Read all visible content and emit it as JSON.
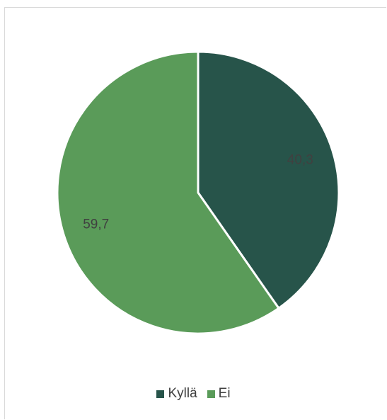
{
  "chart_data": {
    "type": "pie",
    "title": "",
    "slices": [
      {
        "name": "Kyllä",
        "value": 40.3,
        "label": "40,3",
        "color": "#27544a",
        "label_color": "#404040"
      },
      {
        "name": "Ei",
        "value": 59.7,
        "label": "59,7",
        "color": "#5a9b59",
        "label_color": "#404040"
      }
    ],
    "start_angle_deg": 0,
    "direction": "clockwise",
    "legend_position": "bottom"
  }
}
